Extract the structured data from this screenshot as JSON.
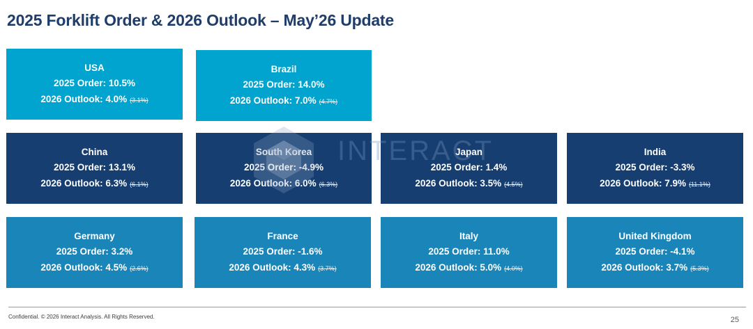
{
  "title": "2025 Forklift Order & 2026 Outlook – May’26 Update",
  "watermark": "INTERACT",
  "cards": [
    {
      "name": "USA",
      "order": "2025 Order: 10.5%",
      "outlook": "2026 Outlook: 4.0%",
      "prev": "(3.1%)"
    },
    {
      "name": "Brazil",
      "order": "2025 Order: 14.0%",
      "outlook": "2026 Outlook: 7.0%",
      "prev": "(4.7%)"
    },
    {
      "name": "China",
      "order": "2025 Order: 13.1%",
      "outlook": "2026 Outlook: 6.3%",
      "prev": "(6.1%)"
    },
    {
      "name": "South Korea",
      "order": "2025 Order: -4.9%",
      "outlook": "2026 Outlook: 6.0%",
      "prev": "(6.3%)"
    },
    {
      "name": "Japan",
      "order": "2025 Order: 1.4%",
      "outlook": "2026 Outlook: 3.5%",
      "prev": "(4.5%)"
    },
    {
      "name": "India",
      "order": "2025 Order: -3.3%",
      "outlook": "2026 Outlook: 7.9%",
      "prev": "(11.1%)"
    },
    {
      "name": "Germany",
      "order": "2025 Order: 3.2%",
      "outlook": "2026 Outlook: 4.5%",
      "prev": "(2.6%)"
    },
    {
      "name": "France",
      "order": "2025 Order: -1.6%",
      "outlook": "2026 Outlook: 4.3%",
      "prev": "(3.7%)"
    },
    {
      "name": "Italy",
      "order": "2025 Order: 11.0%",
      "outlook": "2026 Outlook: 5.0%",
      "prev": "(4.0%)"
    },
    {
      "name": "United Kingdom",
      "order": "2025 Order: -4.1%",
      "outlook": "2026 Outlook: 3.7%",
      "prev": "(5.3%)"
    }
  ],
  "footer": "Confidential. © 2026 Interact Analysis. All Rights Reserved.",
  "page_number": "25",
  "colors": {
    "title": "#1e3d6b",
    "card_light": "#00a4cf",
    "card_dark": "#163e70",
    "card_mid": "#1a85b9",
    "rule": "#4fb2d8"
  }
}
